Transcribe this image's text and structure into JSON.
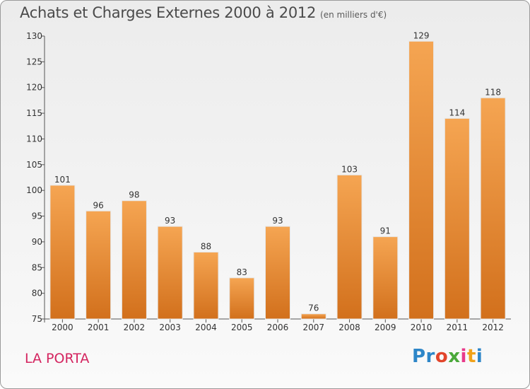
{
  "title": "Achats et Charges Externes 2000 à 2012",
  "subtitle": "(en milliers d'€)",
  "commune": "LA PORTA",
  "logo": [
    "Pr",
    "o",
    "x",
    "i",
    "t",
    "i"
  ],
  "colors": {
    "bar_top": "#f5a552",
    "bar_bottom": "#d2701c",
    "title": "#4a4a4a",
    "commune": "#d4245f"
  },
  "chart_data": {
    "type": "bar",
    "title": "Achats et Charges Externes 2000 à 2012",
    "subtitle": "(en milliers d'€)",
    "xlabel": "",
    "ylabel": "",
    "categories": [
      "2000",
      "2001",
      "2002",
      "2003",
      "2004",
      "2005",
      "2006",
      "2007",
      "2008",
      "2009",
      "2010",
      "2011",
      "2012"
    ],
    "values": [
      101,
      96,
      98,
      93,
      88,
      83,
      93,
      76,
      103,
      91,
      129,
      114,
      118
    ],
    "ylim": [
      75,
      130
    ],
    "yticks": [
      75,
      80,
      85,
      90,
      95,
      100,
      105,
      110,
      115,
      120,
      125,
      130
    ],
    "grid": false,
    "legend": "none"
  }
}
